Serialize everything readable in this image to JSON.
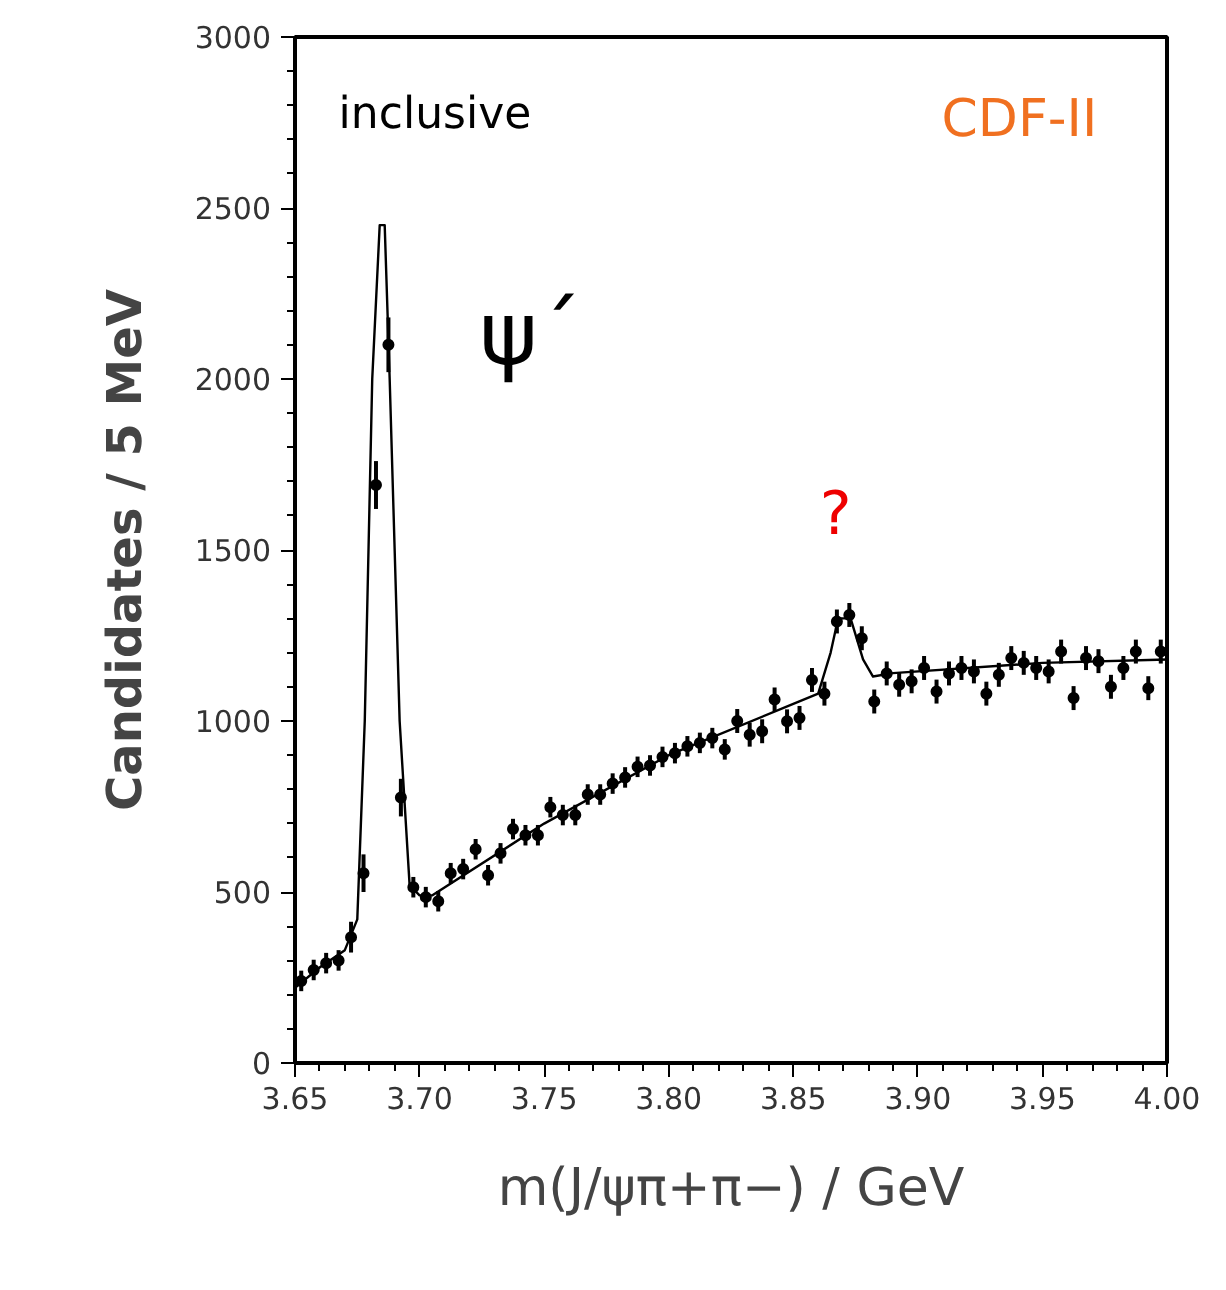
{
  "chart_data": {
    "type": "scatter",
    "xlabel": "m(J/ψπ+π−) / GeV",
    "ylabel": "Candidates / 5 MeV",
    "annotations": [
      "inclusive",
      "CDF-II",
      "ψ´",
      "?"
    ],
    "xlim": [
      3.65,
      4.0
    ],
    "ylim": [
      0,
      3000
    ],
    "xticks": [
      3.65,
      {
        "value": 3.7,
        "label": "3.70"
      },
      3.75,
      {
        "value": 3.8,
        "label": "3.80"
      },
      3.85,
      {
        "value": 3.9,
        "label": "3.90"
      },
      3.95,
      {
        "value": 4.0,
        "label": "4.00"
      }
    ],
    "yticks": [
      0,
      500,
      1000,
      1500,
      2000,
      2500,
      3000
    ],
    "grid": false,
    "series": [
      {
        "color": "#000000",
        "x": [
          3.6525,
          3.6575,
          3.6625,
          3.6675,
          3.6725,
          3.6775,
          3.6825,
          3.6875,
          3.6925,
          3.6975,
          3.7025,
          3.7075,
          3.7125,
          3.7175,
          3.7225,
          3.7275,
          3.7325,
          3.7375,
          3.7425,
          3.7475,
          3.7525,
          3.7575,
          3.7625,
          3.7675,
          3.7725,
          3.7775,
          3.7825,
          3.7875,
          3.7925,
          3.7975,
          3.8025,
          3.8075,
          3.8125,
          3.8175,
          3.8225,
          3.8275,
          3.8325,
          3.8375,
          3.8425,
          3.8475,
          3.8525,
          3.8575,
          3.8625,
          3.8675,
          3.8725,
          3.8775,
          3.8825,
          3.8875,
          3.8925,
          3.8975,
          3.9025,
          3.9075,
          3.9125,
          3.9175,
          3.9225,
          3.9275,
          3.9325,
          3.9375,
          3.9425,
          3.9475,
          3.9525,
          3.9575,
          3.9625,
          3.9675,
          3.9725,
          3.9775,
          3.9825,
          3.9875,
          3.9925,
          3.9975
        ],
        "values": [
          240,
          272,
          292,
          300,
          368,
          555,
          1690,
          2100,
          776,
          514,
          485,
          473,
          555,
          567,
          625,
          549,
          613,
          684,
          666,
          666,
          748,
          725,
          725,
          785,
          785,
          817,
          835,
          866,
          870,
          895,
          906,
          926,
          936,
          950,
          917,
          1000,
          960,
          970,
          1063,
          999,
          1009,
          1120,
          1080,
          1291,
          1310,
          1242,
          1057,
          1139,
          1106,
          1116,
          1155,
          1086,
          1139,
          1155,
          1145,
          1080,
          1135,
          1184,
          1170,
          1155,
          1145,
          1203,
          1067,
          1184,
          1175,
          1100,
          1155,
          1203,
          1096,
          1203
        ],
        "errors": [
          30,
          30,
          30,
          30,
          45,
          55,
          70,
          80,
          55,
          30,
          30,
          30,
          30,
          30,
          30,
          30,
          30,
          30,
          30,
          30,
          30,
          30,
          30,
          30,
          30,
          30,
          30,
          30,
          30,
          30,
          30,
          30,
          30,
          30,
          30,
          35,
          35,
          35,
          35,
          35,
          35,
          35,
          35,
          35,
          35,
          35,
          35,
          35,
          35,
          35,
          35,
          35,
          35,
          35,
          35,
          35,
          35,
          35,
          35,
          35,
          35,
          35,
          35,
          35,
          35,
          35,
          35,
          35,
          35,
          35
        ]
      },
      {
        "type": "line",
        "color": "#000000",
        "x": [
          3.65,
          3.66,
          3.67,
          3.675,
          3.678,
          3.681,
          3.684,
          3.686,
          3.688,
          3.692,
          3.696,
          3.7,
          3.705,
          3.75,
          3.8,
          3.85,
          3.86,
          3.865,
          3.868,
          3.873,
          3.878,
          3.882,
          3.89,
          3.95,
          4.0
        ],
        "values": [
          220,
          280,
          330,
          420,
          1000,
          2000,
          2450,
          2450,
          2000,
          1000,
          520,
          490,
          490,
          700,
          900,
          1050,
          1080,
          1200,
          1300,
          1300,
          1180,
          1130,
          1140,
          1170,
          1180
        ]
      }
    ]
  }
}
